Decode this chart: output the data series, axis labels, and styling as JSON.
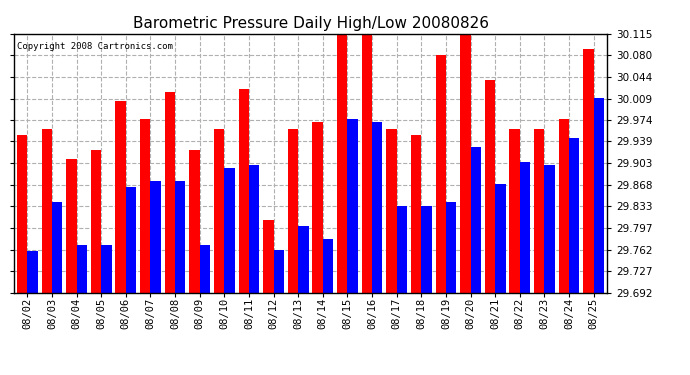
{
  "title": "Barometric Pressure Daily High/Low 20080826",
  "copyright": "Copyright 2008 Cartronics.com",
  "dates": [
    "08/02",
    "08/03",
    "08/04",
    "08/05",
    "08/06",
    "08/07",
    "08/08",
    "08/09",
    "08/10",
    "08/11",
    "08/12",
    "08/13",
    "08/14",
    "08/15",
    "08/16",
    "08/17",
    "08/18",
    "08/19",
    "08/20",
    "08/21",
    "08/22",
    "08/23",
    "08/24",
    "08/25"
  ],
  "highs": [
    29.95,
    29.96,
    29.91,
    29.925,
    30.005,
    29.975,
    30.02,
    29.925,
    29.96,
    30.025,
    29.81,
    29.96,
    29.97,
    30.12,
    30.12,
    29.96,
    29.95,
    30.08,
    30.12,
    30.04,
    29.96,
    29.96,
    29.975,
    30.09
  ],
  "lows": [
    29.76,
    29.84,
    29.77,
    29.77,
    29.865,
    29.875,
    29.875,
    29.77,
    29.895,
    29.9,
    29.762,
    29.8,
    29.78,
    29.975,
    29.97,
    29.833,
    29.833,
    29.84,
    29.93,
    29.87,
    29.905,
    29.9,
    29.945,
    30.01
  ],
  "ymin": 29.692,
  "ymax": 30.115,
  "yticks": [
    29.692,
    29.727,
    29.762,
    29.797,
    29.833,
    29.868,
    29.903,
    29.939,
    29.974,
    30.009,
    30.044,
    30.08,
    30.115
  ],
  "high_color": "#ff0000",
  "low_color": "#0000ff",
  "bg_color": "#ffffff",
  "plot_bg": "#ffffff",
  "grid_color": "#b0b0b0",
  "title_fontsize": 11,
  "tick_fontsize": 7.5,
  "bar_width": 0.42
}
